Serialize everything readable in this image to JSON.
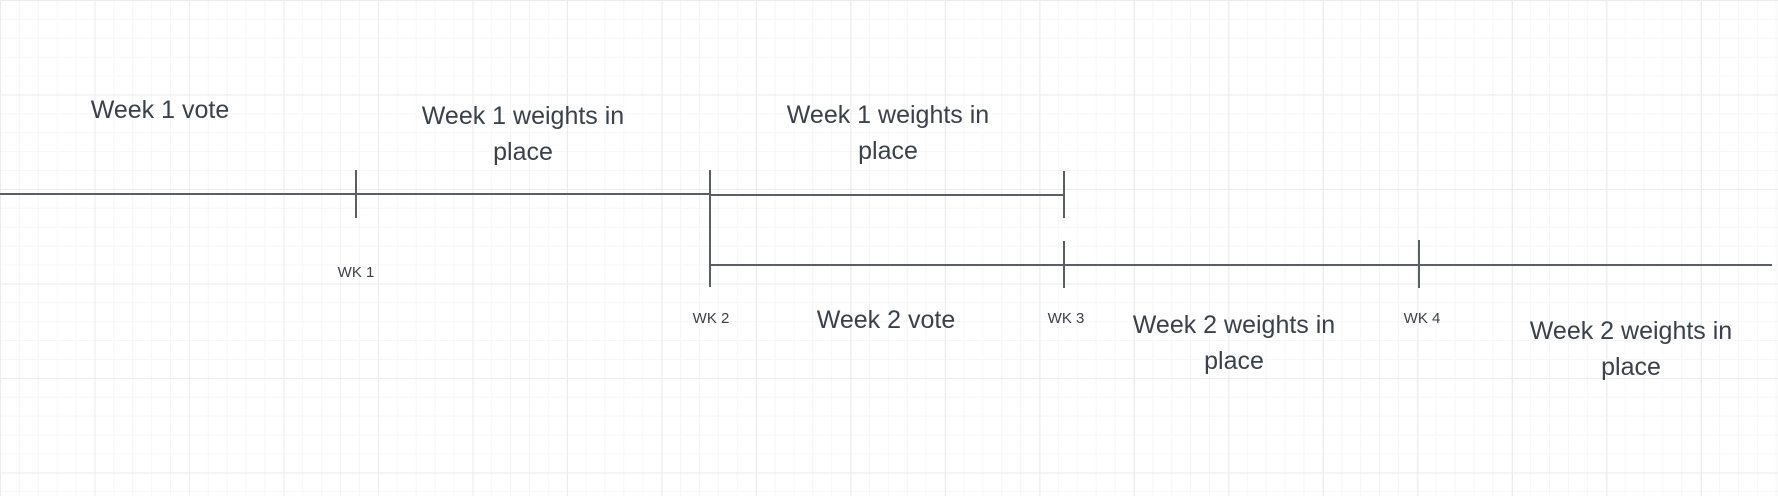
{
  "colors": {
    "line": "#5a5f66",
    "text": "#3a414a",
    "grid_major": "#ececec",
    "grid_minor": "#f6f6f6"
  },
  "labels": {
    "week1_vote": "Week 1 vote",
    "week1_weights_a": "Week 1 weights in place",
    "week1_weights_b": "Week 1 weights in place",
    "week2_vote": "Week 2 vote",
    "week2_weights_a": "Week 2 weights in place",
    "week2_weights_b": "Week 2 weights in place"
  },
  "ticks": {
    "wk1": "WK 1",
    "wk2": "WK 2",
    "wk3": "WK 3",
    "wk4": "WK 4"
  }
}
